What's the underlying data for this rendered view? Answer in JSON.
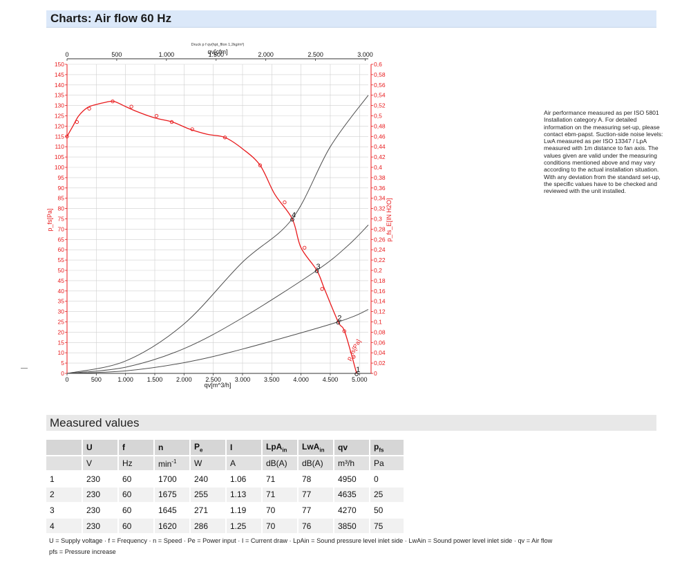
{
  "header": {
    "title": "Charts: Air flow 60 Hz"
  },
  "note": "Air performance measured as per ISO 5801 Installation category A. For detailed information on the measuring set-up, please contact ebm-papst. Suction-side noise levels: LwA measured as per ISO 13347 / LpA measured with 1m distance to fan axis. The values given are valid under the measuring conditions mentioned above and may vary according to the actual installation situation. With any deviation from the standard set-up, the specific values have to be checked and reviewed with the unit installed.",
  "colors": {
    "curve": "#e8191b",
    "system": "#4d4d4d",
    "grid": "#cfcfcf",
    "header_bg": "#dbe8f9",
    "table_header": "#d6d6d6"
  },
  "chart_data": {
    "type": "line",
    "title": "Druck p f qv(hpt_fllon 1,2kg/m³)",
    "xlabel": "qv[m^3/h]",
    "xlabel_top": "qv[cfm]",
    "ylabel": "p_fs[Pa]",
    "ylabel_right": "p_fs_E[IN H2O]",
    "xlim": [
      0,
      5150
    ],
    "ylim": [
      0,
      150
    ],
    "x_ticks": [
      0,
      500,
      1000,
      1500,
      2000,
      2500,
      3000,
      3500,
      4000,
      4500,
      5000
    ],
    "x_tick_labels": [
      "0",
      "500",
      "1.000",
      "1.500",
      "2.000",
      "2.500",
      "3.000",
      "3.500",
      "4.000",
      "4.500",
      "5.000"
    ],
    "x_top_ticks": [
      0,
      500,
      1000,
      1500,
      2000,
      2500,
      3000
    ],
    "x_top_tick_labels": [
      "0",
      "500",
      "1.000",
      "1.500",
      "2.000",
      "2.500",
      "3.000"
    ],
    "y_ticks": [
      0,
      5,
      10,
      15,
      20,
      25,
      30,
      35,
      40,
      45,
      50,
      55,
      60,
      65,
      70,
      75,
      80,
      85,
      90,
      95,
      100,
      105,
      110,
      115,
      120,
      125,
      130,
      135,
      140,
      145,
      150
    ],
    "y_right_ticks": [
      0,
      0.02,
      0.04,
      0.06,
      0.08,
      0.1,
      0.12,
      0.14,
      0.16,
      0.18,
      0.2,
      0.22,
      0.24,
      0.26,
      0.28,
      0.3,
      0.32,
      0.34,
      0.36,
      0.38,
      0.4,
      0.42,
      0.44,
      0.46,
      0.48,
      0.5,
      0.52,
      0.54,
      0.56,
      0.58,
      0.6
    ],
    "y_right_tick_labels": [
      "0",
      "0,02",
      "0,04",
      "0,06",
      "0,08",
      "0,1",
      "0,12",
      "0,14",
      "0,16",
      "0,18",
      "0,2",
      "0,22",
      "0,24",
      "0,26",
      "0,28",
      "0,3",
      "0,32",
      "0,34",
      "0,36",
      "0,38",
      "0,4",
      "0,42",
      "0,44",
      "0,46",
      "0,48",
      "0,5",
      "0,52",
      "0,54",
      "0,56",
      "0,58",
      "0,6"
    ],
    "grid": true,
    "series": [
      {
        "name": "p_fs[Pa]",
        "kind": "fan-curve",
        "x": [
          0,
          100,
          200,
          350,
          500,
          650,
          800,
          1000,
          1200,
          1500,
          1800,
          2100,
          2400,
          2700,
          3000,
          3300,
          3550,
          3850,
          4000,
          4270,
          4400,
          4635,
          4750,
          4950
        ],
        "y": [
          115,
          120,
          125,
          129,
          130.5,
          131.5,
          132,
          129.5,
          127,
          124,
          122,
          118.5,
          116,
          114.5,
          109,
          101,
          87,
          75,
          61,
          50,
          41,
          25,
          20,
          0
        ]
      },
      {
        "kind": "system",
        "points": [
          [
            0,
            0
          ],
          [
            1000,
            6
          ],
          [
            2000,
            24
          ],
          [
            3000,
            54
          ],
          [
            3850,
            75
          ],
          [
            4500,
            110
          ],
          [
            5150,
            135
          ]
        ]
      },
      {
        "kind": "system",
        "points": [
          [
            0,
            0
          ],
          [
            1000,
            3
          ],
          [
            2000,
            12
          ],
          [
            3000,
            27
          ],
          [
            4270,
            50
          ],
          [
            4800,
            62
          ],
          [
            5150,
            72
          ]
        ]
      },
      {
        "kind": "system",
        "points": [
          [
            0,
            0
          ],
          [
            1000,
            1.2
          ],
          [
            2000,
            5.2
          ],
          [
            3000,
            11.8
          ],
          [
            4635,
            25
          ],
          [
            5150,
            31
          ]
        ]
      }
    ],
    "markers": [
      {
        "x": 0,
        "y": 115
      },
      {
        "x": 170,
        "y": 122
      },
      {
        "x": 380,
        "y": 128.5
      },
      {
        "x": 780,
        "y": 132
      },
      {
        "x": 1100,
        "y": 129.5
      },
      {
        "x": 1530,
        "y": 125
      },
      {
        "x": 1790,
        "y": 122
      },
      {
        "x": 2140,
        "y": 118.5
      },
      {
        "x": 2700,
        "y": 114.5
      },
      {
        "x": 3300,
        "y": 101
      },
      {
        "x": 3720,
        "y": 83
      },
      {
        "x": 4060,
        "y": 61
      },
      {
        "x": 4360,
        "y": 41
      },
      {
        "x": 4740,
        "y": 20.5
      },
      {
        "x": 4900,
        "y": 8
      }
    ],
    "operating_points": [
      {
        "label": "4",
        "x": 3850,
        "y": 75
      },
      {
        "label": "3",
        "x": 4270,
        "y": 50
      },
      {
        "label": "2",
        "x": 4635,
        "y": 25
      },
      {
        "label": "1",
        "x": 4950,
        "y": 0
      }
    ],
    "curve_label": "p_fs[Pa]"
  },
  "measured": {
    "title": "Measured values",
    "columns": [
      "",
      "U",
      "f",
      "n",
      "P_e",
      "I",
      "LpA_in",
      "LwA_in",
      "qv",
      "p_fs"
    ],
    "units": [
      "",
      "V",
      "Hz",
      "min-1",
      "W",
      "A",
      "dB(A)",
      "dB(A)",
      "m³/h",
      "Pa"
    ],
    "rows": [
      [
        "1",
        "230",
        "60",
        "1700",
        "240",
        "1.06",
        "71",
        "78",
        "4950",
        "0"
      ],
      [
        "2",
        "230",
        "60",
        "1675",
        "255",
        "1.13",
        "71",
        "77",
        "4635",
        "25"
      ],
      [
        "3",
        "230",
        "60",
        "1645",
        "271",
        "1.19",
        "70",
        "77",
        "4270",
        "50"
      ],
      [
        "4",
        "230",
        "60",
        "1620",
        "286",
        "1.25",
        "70",
        "76",
        "3850",
        "75"
      ]
    ]
  },
  "legend_text": "U = Supply voltage · f = Frequency · n = Speed · Pe = Power input · I = Current draw · LpAin = Sound pressure level inlet side · LwAin = Sound power level inlet side · qv = Air flow",
  "legend_text2": "pfs = Pressure increase"
}
